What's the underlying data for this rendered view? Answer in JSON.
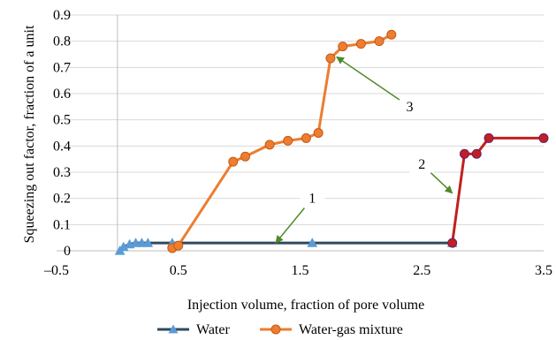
{
  "chart_data": {
    "type": "scatter",
    "xlabel": "Injection volume, fraction of pore volume",
    "ylabel": "Squeezing out factor, fraction of a unit",
    "xlim": [
      -0.5,
      3.5
    ],
    "ylim": [
      0,
      0.9
    ],
    "x_ticks": [
      "–0.5",
      "0.5",
      "1.5",
      "2.5",
      "3.5"
    ],
    "y_ticks": [
      "0",
      "0.1",
      "0.2",
      "0.3",
      "0.4",
      "0.5",
      "0.6",
      "0.7",
      "0.8",
      "0.9"
    ],
    "grid": "horizontal",
    "legend_position": "bottom",
    "series": [
      {
        "name": "Water",
        "color": "#2e4a5f",
        "marker": "triangle",
        "marker_color": "#5b9bd5",
        "points": [
          [
            0.02,
            0.0
          ],
          [
            0.05,
            0.015
          ],
          [
            0.1,
            0.025
          ],
          [
            0.15,
            0.03
          ],
          [
            0.2,
            0.03
          ],
          [
            0.25,
            0.03
          ],
          [
            0.45,
            0.03
          ],
          [
            1.6,
            0.03
          ],
          [
            2.75,
            0.03
          ]
        ]
      },
      {
        "name": "Water-gas mixture",
        "color": "#ed7d31",
        "marker": "circle",
        "marker_color": "#ed7d31",
        "points": [
          [
            0.45,
            0.01
          ],
          [
            0.5,
            0.02
          ],
          [
            0.95,
            0.34
          ],
          [
            1.05,
            0.36
          ],
          [
            1.25,
            0.405
          ],
          [
            1.4,
            0.42
          ],
          [
            1.55,
            0.43
          ],
          [
            1.65,
            0.45
          ],
          [
            1.75,
            0.735
          ],
          [
            1.85,
            0.78
          ],
          [
            2.0,
            0.79
          ],
          [
            2.15,
            0.8
          ],
          [
            2.25,
            0.825
          ]
        ]
      },
      {
        "name": "",
        "color": "#c0201e",
        "marker": "circle",
        "marker_color": "#c0201e",
        "points": [
          [
            2.75,
            0.03
          ],
          [
            2.85,
            0.37
          ],
          [
            2.95,
            0.37
          ],
          [
            3.05,
            0.43
          ],
          [
            3.5,
            0.43
          ]
        ]
      }
    ],
    "annotations": [
      {
        "text": "1",
        "x": 1.6,
        "y": 0.2,
        "arrow_to": [
          1.3,
          0.03
        ]
      },
      {
        "text": "2",
        "x": 2.5,
        "y": 0.33,
        "arrow_to": [
          2.75,
          0.22
        ]
      },
      {
        "text": "3",
        "x": 2.4,
        "y": 0.55,
        "arrow_to": [
          1.8,
          0.74
        ]
      }
    ],
    "legend": [
      "Water",
      "Water-gas mixture"
    ]
  }
}
